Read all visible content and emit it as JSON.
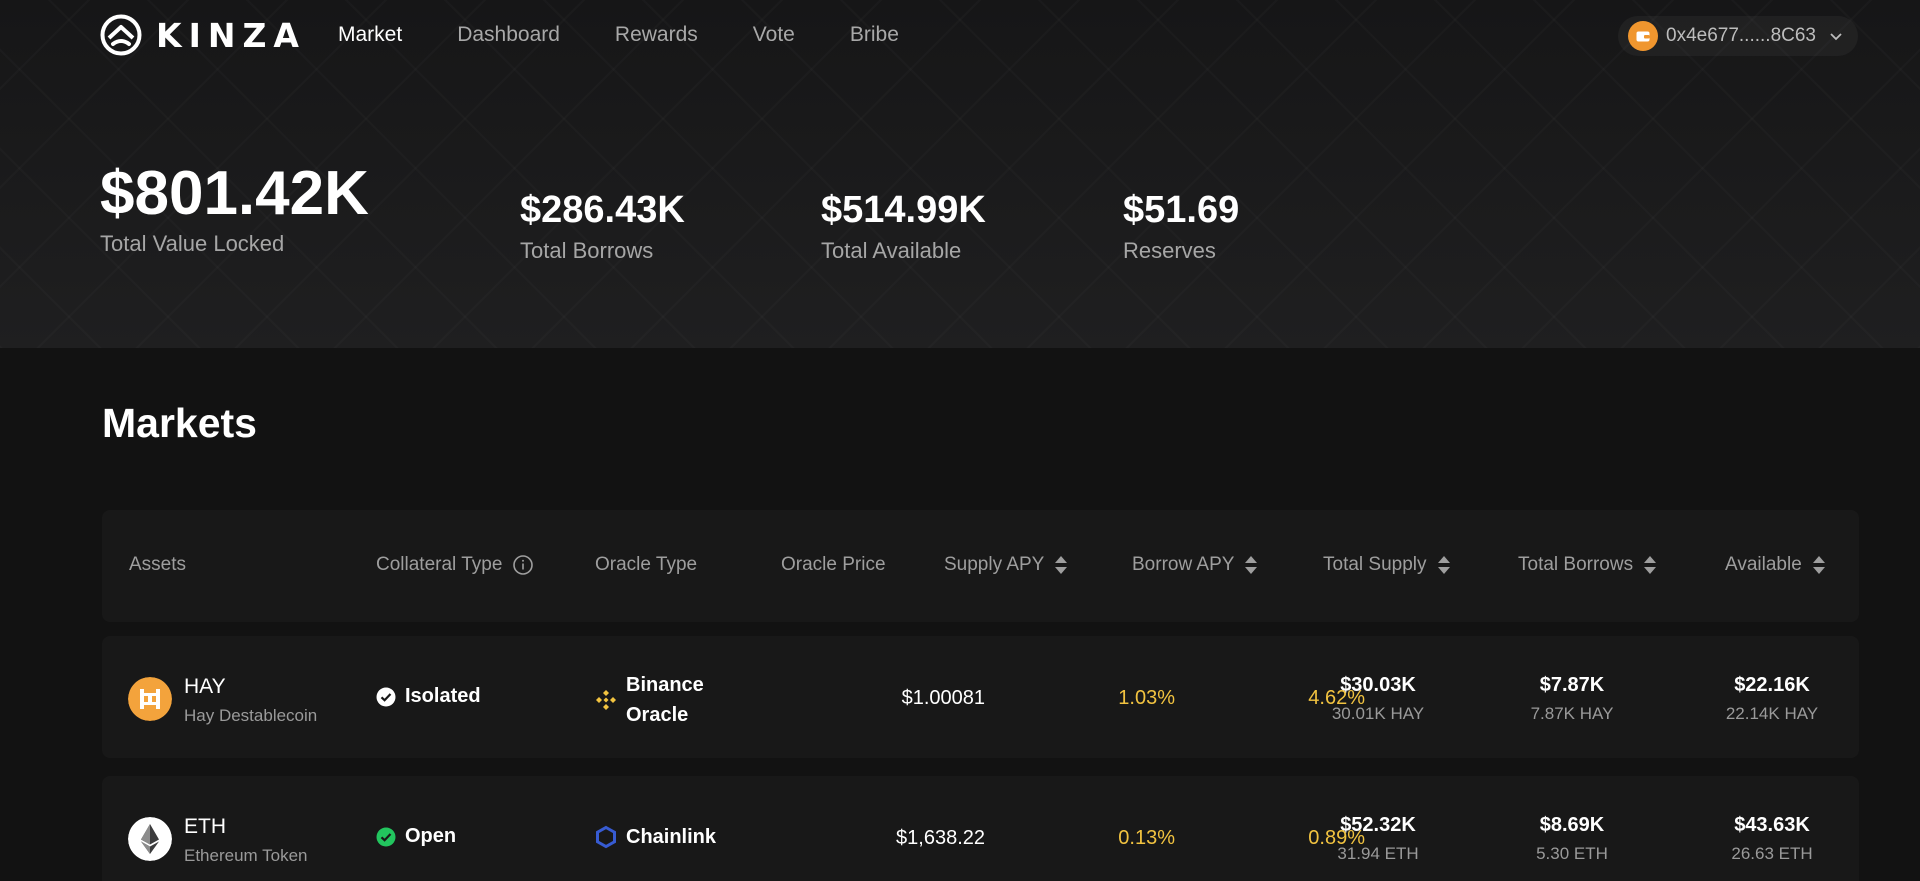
{
  "brand": {
    "name": "KINZA"
  },
  "nav": {
    "items": [
      {
        "label": "Market",
        "active": true
      },
      {
        "label": "Dashboard",
        "active": false
      },
      {
        "label": "Rewards",
        "active": false
      },
      {
        "label": "Vote",
        "active": false
      },
      {
        "label": "Bribe",
        "active": false
      }
    ]
  },
  "wallet": {
    "address": "0x4e677......8C63",
    "icon": "wallet-icon",
    "color": "#f0962e"
  },
  "stats": {
    "tvl": {
      "value": "$801.42K",
      "label": "Total Value Locked"
    },
    "borrows": {
      "value": "$286.43K",
      "label": "Total Borrows"
    },
    "available": {
      "value": "$514.99K",
      "label": "Total Available"
    },
    "reserves": {
      "value": "$51.69",
      "label": "Reserves"
    }
  },
  "markets": {
    "title": "Markets",
    "columns": {
      "assets": "Assets",
      "collateral_type": "Collateral Type",
      "oracle_type": "Oracle Type",
      "oracle_price": "Oracle Price",
      "supply_apy": "Supply APY",
      "borrow_apy": "Borrow APY",
      "total_supply": "Total Supply",
      "total_borrows": "Total Borrows",
      "available": "Available"
    },
    "rows": [
      {
        "symbol": "HAY",
        "name": "Hay Destablecoin",
        "icon": "hay-coin-icon",
        "collateral_type": "Isolated",
        "oracle_line1": "Binance",
        "oracle_line2": "Oracle",
        "oracle_icon": "binance-icon",
        "oracle_price": "$1.00081",
        "supply_apy": "1.03%",
        "borrow_apy": "4.62%",
        "total_supply_usd": "$30.03K",
        "total_supply_tok": "30.01K HAY",
        "total_borrows_usd": "$7.87K",
        "total_borrows_tok": "7.87K HAY",
        "available_usd": "$22.16K",
        "available_tok": "22.14K HAY"
      },
      {
        "symbol": "ETH",
        "name": "Ethereum Token",
        "icon": "eth-coin-icon",
        "collateral_type": "Open",
        "oracle_line1": "Chainlink",
        "oracle_icon": "chainlink-icon",
        "oracle_price": "$1,638.22",
        "supply_apy": "0.13%",
        "borrow_apy": "0.89%",
        "total_supply_usd": "$52.32K",
        "total_supply_tok": "31.94 ETH",
        "total_borrows_usd": "$8.69K",
        "total_borrows_tok": "5.30 ETH",
        "available_usd": "$43.63K",
        "available_tok": "26.63 ETH"
      }
    ]
  },
  "colors": {
    "accent_yellow": "#f2c340",
    "background": "#121212",
    "panel": "#181818",
    "isolated_check": "#ffffff",
    "open_check": "#22c55e"
  }
}
